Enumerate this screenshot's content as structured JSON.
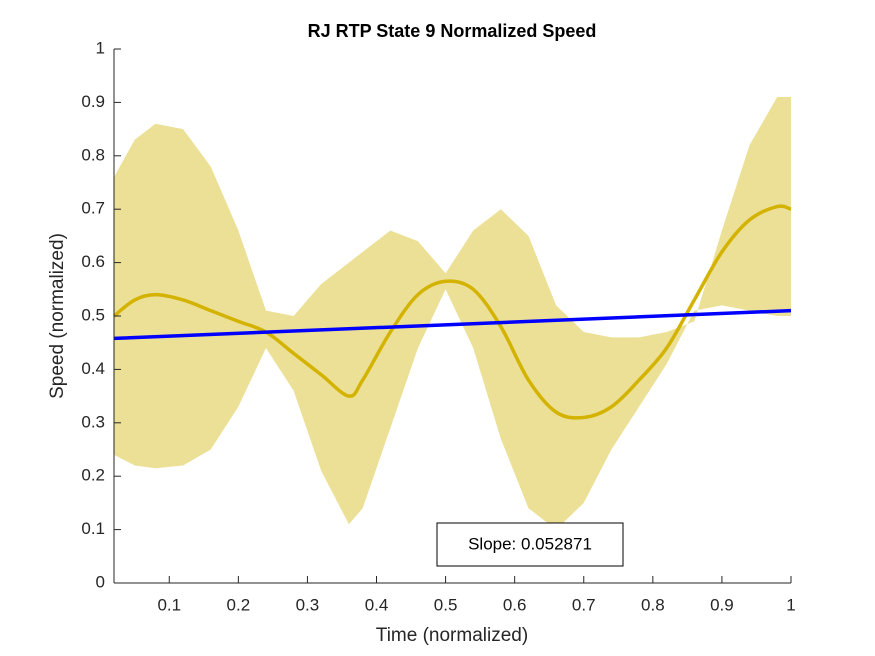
{
  "chart_data": {
    "type": "line",
    "title": "RJ  RTP State 9 Normalized Speed",
    "xlabel": "Time (normalized)",
    "ylabel": "Speed (normalized)",
    "annotation": "Slope: 0.052871",
    "x": [
      0.02,
      0.05,
      0.08,
      0.12,
      0.16,
      0.2,
      0.24,
      0.28,
      0.32,
      0.36,
      0.38,
      0.42,
      0.46,
      0.5,
      0.54,
      0.58,
      0.62,
      0.66,
      0.7,
      0.74,
      0.78,
      0.82,
      0.86,
      0.9,
      0.94,
      0.98,
      1.0
    ],
    "mean": [
      0.5,
      0.53,
      0.54,
      0.53,
      0.51,
      0.49,
      0.47,
      0.43,
      0.39,
      0.35,
      0.38,
      0.47,
      0.54,
      0.565,
      0.55,
      0.48,
      0.38,
      0.32,
      0.31,
      0.33,
      0.38,
      0.44,
      0.53,
      0.62,
      0.68,
      0.705,
      0.7
    ],
    "band_upper": [
      0.76,
      0.83,
      0.86,
      0.85,
      0.78,
      0.66,
      0.51,
      0.5,
      0.56,
      0.6,
      0.62,
      0.66,
      0.64,
      0.58,
      0.66,
      0.7,
      0.65,
      0.52,
      0.47,
      0.46,
      0.46,
      0.47,
      0.49,
      0.66,
      0.82,
      0.91,
      0.91
    ],
    "band_lower": [
      0.24,
      0.22,
      0.215,
      0.22,
      0.25,
      0.33,
      0.44,
      0.36,
      0.21,
      0.11,
      0.14,
      0.29,
      0.44,
      0.55,
      0.44,
      0.27,
      0.14,
      0.1,
      0.15,
      0.25,
      0.33,
      0.41,
      0.51,
      0.52,
      0.51,
      0.5,
      0.5
    ],
    "mean_color": "#d4b300",
    "band_color": "#ebe096",
    "fit": {
      "x": [
        0.02,
        1.0
      ],
      "values": [
        0.458,
        0.51
      ],
      "color": "#0000ff"
    },
    "xlim": [
      0.02,
      1.0
    ],
    "ylim": [
      0,
      1
    ],
    "xticks": [
      0.1,
      0.2,
      0.3,
      0.4,
      0.5,
      0.6,
      0.7,
      0.8,
      0.9,
      1
    ],
    "yticks": [
      0,
      0.1,
      0.2,
      0.3,
      0.4,
      0.5,
      0.6,
      0.7,
      0.8,
      0.9,
      1
    ]
  }
}
